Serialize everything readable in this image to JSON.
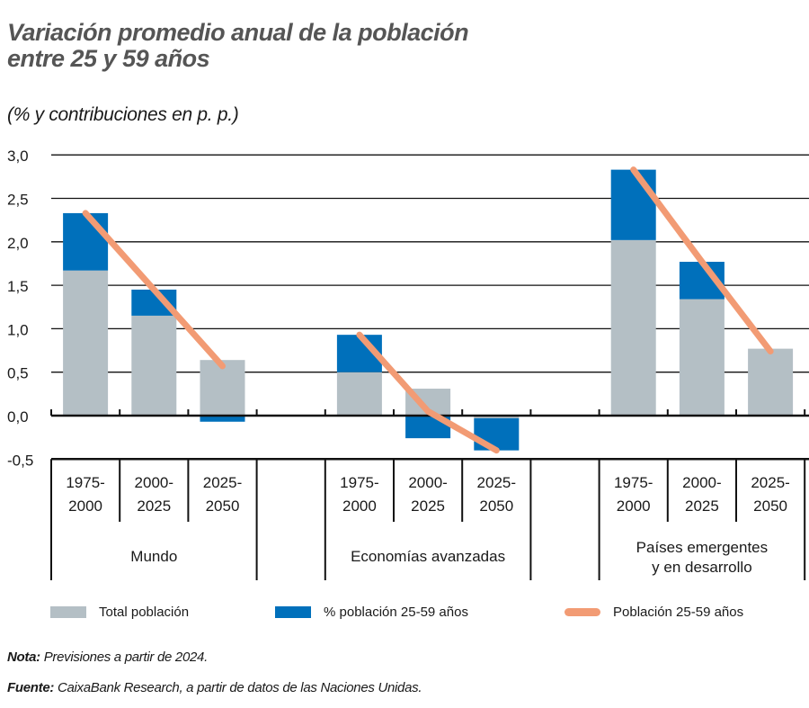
{
  "title": "Variación promedio anual de la población entre 25 y 59 años",
  "title_line1": "Variación promedio anual de la población",
  "title_line2": "entre 25 y 59 años",
  "subtitle": "(% y contribuciones en p. p.)",
  "colors": {
    "total": "#b4bfc5",
    "pct": "#0070bb",
    "line": "#f29b74",
    "grid": "#111111",
    "title": "#555555"
  },
  "legend": [
    {
      "key": "total",
      "label": "Total población"
    },
    {
      "key": "pct",
      "label": "% población 25-59 años"
    },
    {
      "key": "line",
      "label": "Población 25-59 años"
    }
  ],
  "note_label": "Nota:",
  "note_text": " Previsiones a partir de 2024.",
  "source_label": "Fuente:",
  "source_text": " CaixaBank Research, a partir de datos de las Naciones Unidas.",
  "chart_data": {
    "type": "bar",
    "title": "Variación promedio anual de la población entre 25 y 59 años",
    "subtitle": "(% y contribuciones en p. p.)",
    "xlabel": "",
    "ylabel": "",
    "ylim": [
      -0.5,
      3.0
    ],
    "yticks": [
      "3,0",
      "2,5",
      "2,0",
      "1,5",
      "1,0",
      "0,5",
      "0,0",
      "-0,5"
    ],
    "ytick_values": [
      3.0,
      2.5,
      2.0,
      1.5,
      1.0,
      0.5,
      0.0,
      -0.5
    ],
    "grid": true,
    "stacked": true,
    "legend_position": "bottom",
    "groups": [
      {
        "label": "Mundo",
        "categories": [
          "1975-2000",
          "2000-2025",
          "2025-2050"
        ]
      },
      {
        "label": "Economías avanzadas",
        "categories": [
          "1975-2000",
          "2000-2025",
          "2025-2050"
        ]
      },
      {
        "label": "Países emergentes y en desarrollo",
        "label_lines": [
          "Países emergentes",
          "y en desarrollo"
        ],
        "categories": [
          "1975-2000",
          "2000-2025",
          "2025-2050"
        ]
      }
    ],
    "categories": [
      "Mundo 1975-2000",
      "Mundo 2000-2025",
      "Mundo 2025-2050",
      "Economías avanzadas 1975-2000",
      "Economías avanzadas 2000-2025",
      "Economías avanzadas 2025-2050",
      "Países emergentes y en desarrollo 1975-2000",
      "Países emergentes y en desarrollo 2000-2025",
      "Países emergentes y en desarrollo 2025-2050"
    ],
    "series": [
      {
        "name": "Total población",
        "type": "bar",
        "values": [
          1.67,
          1.15,
          0.64,
          0.5,
          0.31,
          -0.03,
          2.02,
          1.34,
          0.77
        ]
      },
      {
        "name": "% población 25-59 años",
        "type": "bar",
        "values": [
          0.66,
          0.3,
          -0.07,
          0.43,
          -0.26,
          -0.37,
          0.81,
          0.43,
          -0.01
        ]
      },
      {
        "name": "Población 25-59 años",
        "type": "line",
        "values": [
          2.33,
          1.45,
          0.57,
          0.93,
          0.05,
          -0.4,
          2.83,
          1.77,
          0.74
        ]
      }
    ]
  }
}
